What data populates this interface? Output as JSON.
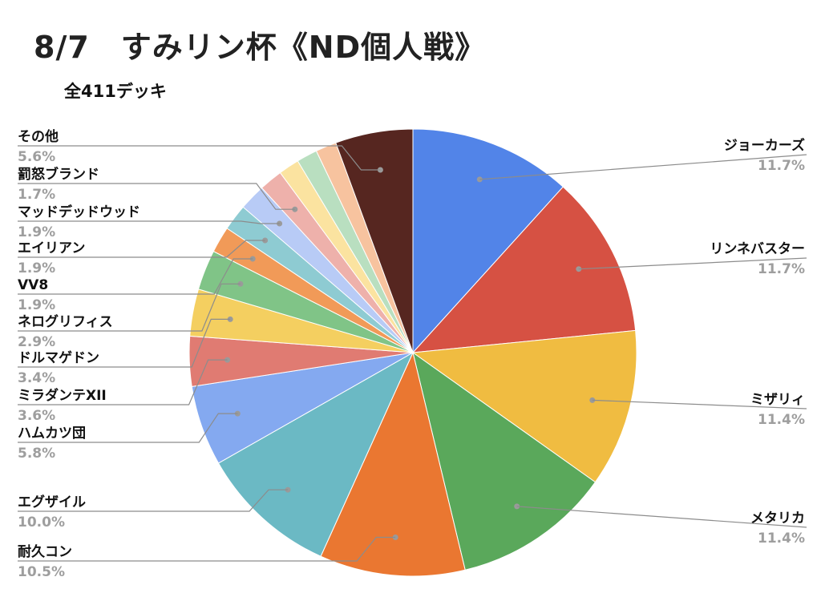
{
  "chart_data": {
    "type": "pie",
    "title": "8/7　すみリン杯《ND個人戦》",
    "subtitle": "全411デッキ",
    "start_angle_deg": 0,
    "direction": "clockwise",
    "legend": "labels-on-leader-lines",
    "slices": [
      {
        "label": "ジョーカーズ",
        "value": 11.7,
        "pct_label": "11.7%",
        "color": "#5284e8"
      },
      {
        "label": "リンネバスター",
        "value": 11.7,
        "pct_label": "11.7%",
        "color": "#d65143"
      },
      {
        "label": "ミザリィ",
        "value": 11.4,
        "pct_label": "11.4%",
        "color": "#f0bc41"
      },
      {
        "label": "メタリカ",
        "value": 11.4,
        "pct_label": "11.4%",
        "color": "#5aa85b"
      },
      {
        "label": "耐久コン",
        "value": 10.5,
        "pct_label": "10.5%",
        "color": "#ea7731"
      },
      {
        "label": "エグザイル",
        "value": 10.0,
        "pct_label": "10.0%",
        "color": "#6bb9c4"
      },
      {
        "label": "ハムカツ団",
        "value": 5.8,
        "pct_label": "5.8%",
        "color": "#84a9f0"
      },
      {
        "label": "ミラダンテXII",
        "value": 3.6,
        "pct_label": "3.6%",
        "color": "#e07b72"
      },
      {
        "label": "ドルマゲドン",
        "value": 3.4,
        "pct_label": "3.4%",
        "color": "#f4cf60"
      },
      {
        "label": "ネログリフィス",
        "value": 2.9,
        "pct_label": "2.9%",
        "color": "#80c487"
      },
      {
        "label": "VV8",
        "value": 1.9,
        "pct_label": "1.9%",
        "color": "#f19a58"
      },
      {
        "label": "エイリアン",
        "value": 1.9,
        "pct_label": "1.9%",
        "color": "#8ecbd2"
      },
      {
        "label": "マッドデッドウッド",
        "value": 1.9,
        "pct_label": "1.9%",
        "color": "#b8cbf6"
      },
      {
        "label": "罰怒ブランド",
        "value": 1.7,
        "pct_label": "1.7%",
        "color": "#eeb1ab"
      },
      {
        "label": "",
        "value": 1.5,
        "pct_label": "",
        "color": "#fbe3a0"
      },
      {
        "label": "",
        "value": 1.5,
        "pct_label": "",
        "color": "#b9dfc0"
      },
      {
        "label": "",
        "value": 1.5,
        "pct_label": "",
        "color": "#f7c39f"
      },
      {
        "label": "その他",
        "value": 5.6,
        "pct_label": "5.6%",
        "color": "#562620"
      }
    ]
  }
}
